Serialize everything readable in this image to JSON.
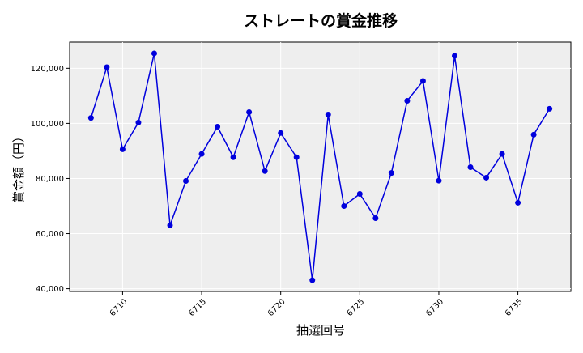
{
  "chart_data": {
    "type": "line",
    "title": "ストレートの賞金推移",
    "xlabel": "抽選回号",
    "ylabel": "賞金額（円）",
    "x": [
      6708,
      6709,
      6710,
      6711,
      6712,
      6713,
      6714,
      6715,
      6716,
      6717,
      6718,
      6719,
      6720,
      6721,
      6722,
      6723,
      6724,
      6725,
      6726,
      6727,
      6728,
      6729,
      6730,
      6731,
      6732,
      6733,
      6734,
      6735,
      6736,
      6737
    ],
    "series": [
      {
        "name": "",
        "values": [
          102000,
          120400,
          90600,
          100300,
          125400,
          63000,
          79100,
          88900,
          98800,
          87700,
          104100,
          82700,
          96500,
          87700,
          43100,
          103200,
          70000,
          74400,
          65600,
          82000,
          108200,
          115400,
          79200,
          124500,
          84100,
          80300,
          88900,
          71200,
          95900,
          105300
        ]
      }
    ],
    "xlim": [
      6706.65,
      6738.35
    ],
    "ylim": [
      39000,
      129500
    ],
    "xticks": [
      6710,
      6715,
      6720,
      6725,
      6730,
      6735
    ],
    "yticks": [
      40000,
      60000,
      80000,
      100000,
      120000
    ],
    "ytick_labels": [
      "40,000",
      "60,000",
      "80,000",
      "100,000",
      "120,000"
    ],
    "grid": true,
    "line_color": "#0000dd",
    "marker_color": "#0000dd",
    "plot_background": "#eeeeee"
  }
}
